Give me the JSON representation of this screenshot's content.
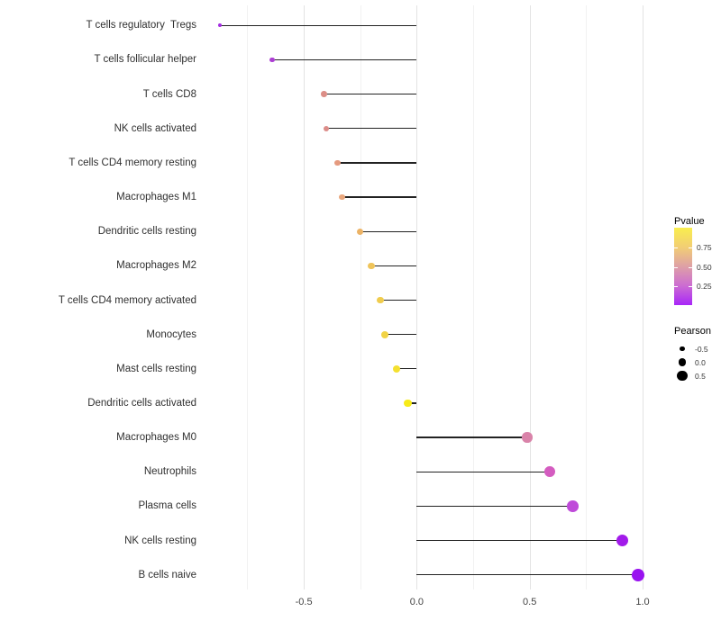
{
  "chart_data": {
    "type": "lollipop",
    "title": "",
    "xlabel": "",
    "ylabel": "",
    "grid": "vertical-only",
    "x_axis": {
      "range": [
        -0.9,
        1.07
      ],
      "major_ticks": [
        -0.5,
        0.0,
        0.5,
        1.0
      ],
      "major_tick_labels": [
        "-0.5",
        "0.0",
        "0.5",
        "1.0"
      ],
      "minor_ticks": [
        -0.75,
        -0.25,
        0.25,
        0.75
      ]
    },
    "rows": [
      {
        "label": "T cells regulatory  Tregs",
        "pearson": -0.87,
        "pvalue": 0.05,
        "color": "#A42CE1"
      },
      {
        "label": "T cells follicular helper",
        "pearson": -0.64,
        "pvalue": 0.12,
        "color": "#AC3ED3"
      },
      {
        "label": "T cells CD8",
        "pearson": -0.41,
        "pvalue": 0.45,
        "color": "#DC8E87"
      },
      {
        "label": "NK cells activated",
        "pearson": -0.4,
        "pvalue": 0.46,
        "color": "#DC8D89"
      },
      {
        "label": "T cells CD4 memory resting",
        "pearson": -0.35,
        "pvalue": 0.51,
        "color": "#E59A7F"
      },
      {
        "label": "Macrophages M1",
        "pearson": -0.33,
        "pvalue": 0.55,
        "color": "#E9A77D"
      },
      {
        "label": "Dendritic cells resting",
        "pearson": -0.25,
        "pvalue": 0.62,
        "color": "#ECB366"
      },
      {
        "label": "Macrophages M2",
        "pearson": -0.2,
        "pvalue": 0.68,
        "color": "#EFC45A"
      },
      {
        "label": "T cells CD4 memory activated",
        "pearson": -0.16,
        "pvalue": 0.72,
        "color": "#F0CC4D"
      },
      {
        "label": "Monocytes",
        "pearson": -0.14,
        "pvalue": 0.75,
        "color": "#F1D345"
      },
      {
        "label": "Mast cells resting",
        "pearson": -0.09,
        "pvalue": 0.82,
        "color": "#F4E02F"
      },
      {
        "label": "Dendritic cells activated",
        "pearson": -0.04,
        "pvalue": 0.9,
        "color": "#F7EB19"
      },
      {
        "label": "Macrophages M0",
        "pearson": 0.49,
        "pvalue": 0.37,
        "color": "#D983A9"
      },
      {
        "label": "Neutrophils",
        "pearson": 0.59,
        "pvalue": 0.3,
        "color": "#D45CC0"
      },
      {
        "label": "Plasma cells",
        "pearson": 0.69,
        "pvalue": 0.2,
        "color": "#BF4BD9"
      },
      {
        "label": "NK cells resting",
        "pearson": 0.91,
        "pvalue": 0.03,
        "color": "#A21BEA"
      },
      {
        "label": "B cells naive",
        "pearson": 0.98,
        "pvalue": 0.01,
        "color": "#9913F0"
      }
    ],
    "legend": {
      "pvalue": {
        "title": "Pvalue",
        "tick_labels": [
          "0.75",
          "0.50",
          "0.25"
        ],
        "gradient_bottom_to_top": [
          "#A826F8",
          "#CC6CD2",
          "#DEA0A6",
          "#F2CE74",
          "#F9EE4E"
        ],
        "range": [
          0,
          1
        ]
      },
      "pearson": {
        "title": "Pearson",
        "items": [
          {
            "label": "-0.5",
            "value": -0.5
          },
          {
            "label": "0.0",
            "value": 0.0
          },
          {
            "label": "0.5",
            "value": 0.5
          }
        ],
        "dot_color": "#000000"
      }
    }
  },
  "colors": {
    "background": "#FFFFFF",
    "grid_major": "#E3E3E3",
    "grid_minor": "#F1F1F1",
    "stem": "#222222",
    "axis_text": "#454545",
    "row_label_text": "#303030"
  }
}
